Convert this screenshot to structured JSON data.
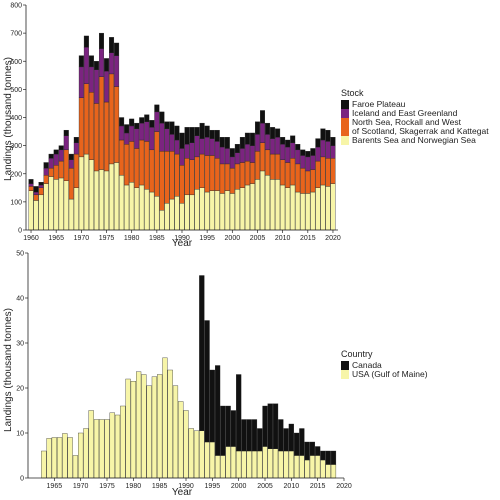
{
  "chart_data": [
    {
      "type": "bar",
      "stacked": true,
      "xlabel": "Year",
      "ylabel": "Landings (thousand tonnes)",
      "ylim": [
        0,
        800
      ],
      "yticks": [
        0,
        100,
        200,
        300,
        400,
        500,
        600,
        700,
        800
      ],
      "xlim": [
        1959,
        2021
      ],
      "xticks": [
        1960,
        1965,
        1970,
        1975,
        1980,
        1985,
        1990,
        1995,
        2000,
        2005,
        2010,
        2015,
        2020
      ],
      "legend_title": "Stock",
      "legend_position": "right",
      "legend_items": [
        "Faroe Plateau",
        "Iceland and East Greenland",
        "North Sea, Rockall and West of Scotland, Skagerrak and Kattegat",
        "Barents Sea and Norwegian Sea"
      ],
      "years": [
        1960,
        1961,
        1962,
        1963,
        1964,
        1965,
        1966,
        1967,
        1968,
        1969,
        1970,
        1971,
        1972,
        1973,
        1974,
        1975,
        1976,
        1977,
        1978,
        1979,
        1980,
        1981,
        1982,
        1983,
        1984,
        1985,
        1986,
        1987,
        1988,
        1989,
        1990,
        1991,
        1992,
        1993,
        1994,
        1995,
        1996,
        1997,
        1998,
        1999,
        2000,
        2001,
        2002,
        2003,
        2004,
        2005,
        2006,
        2007,
        2008,
        2009,
        2010,
        2011,
        2012,
        2013,
        2014,
        2015,
        2016,
        2017,
        2018,
        2019,
        2020
      ],
      "series": [
        {
          "name": "Barents Sea and Norwegian Sea",
          "color": "#f7f5a8",
          "values": [
            140,
            105,
            125,
            165,
            190,
            180,
            185,
            175,
            110,
            150,
            260,
            270,
            250,
            210,
            215,
            210,
            235,
            240,
            195,
            160,
            170,
            150,
            160,
            145,
            135,
            120,
            70,
            95,
            110,
            120,
            95,
            125,
            125,
            145,
            150,
            135,
            140,
            140,
            130,
            140,
            130,
            145,
            150,
            160,
            165,
            180,
            210,
            195,
            180,
            180,
            160,
            150,
            160,
            135,
            130,
            130,
            135,
            150,
            160,
            155,
            165
          ]
        },
        {
          "name": "North Sea, Rockall and West of Scotland, Skagerrak and Kattegat",
          "color": "#e8641c",
          "values": [
            15,
            20,
            25,
            30,
            30,
            50,
            60,
            110,
            110,
            120,
            210,
            250,
            240,
            240,
            330,
            245,
            320,
            270,
            125,
            145,
            145,
            140,
            160,
            170,
            150,
            230,
            210,
            185,
            170,
            150,
            135,
            130,
            125,
            115,
            120,
            130,
            125,
            115,
            105,
            95,
            90,
            90,
            90,
            85,
            75,
            100,
            100,
            90,
            90,
            90,
            90,
            90,
            95,
            100,
            90,
            80,
            80,
            95,
            100,
            100,
            90
          ]
        },
        {
          "name": "Iceland and East Greenland",
          "color": "#7b2480",
          "values": [
            10,
            10,
            10,
            25,
            35,
            40,
            40,
            50,
            30,
            40,
            110,
            130,
            90,
            120,
            100,
            110,
            75,
            110,
            50,
            40,
            55,
            70,
            60,
            70,
            80,
            70,
            100,
            80,
            60,
            50,
            60,
            50,
            60,
            75,
            55,
            65,
            60,
            60,
            60,
            55,
            40,
            40,
            50,
            60,
            60,
            60,
            70,
            55,
            55,
            60,
            55,
            55,
            55,
            50,
            45,
            50,
            50,
            50,
            60,
            60,
            45
          ]
        },
        {
          "name": "Faroe Plateau",
          "color": "#111111",
          "values": [
            15,
            20,
            10,
            20,
            15,
            15,
            15,
            20,
            20,
            20,
            40,
            40,
            40,
            30,
            55,
            45,
            55,
            45,
            30,
            30,
            25,
            20,
            20,
            25,
            25,
            25,
            40,
            25,
            45,
            50,
            55,
            60,
            55,
            30,
            55,
            40,
            30,
            40,
            35,
            40,
            30,
            30,
            40,
            40,
            45,
            45,
            45,
            40,
            40,
            30,
            25,
            25,
            25,
            20,
            20,
            20,
            25,
            30,
            40,
            40,
            30
          ]
        }
      ]
    },
    {
      "type": "bar",
      "stacked": true,
      "xlabel": "Year",
      "ylabel": "Landings (thousand tonnes)",
      "ylim": [
        0,
        50
      ],
      "yticks": [
        0,
        10,
        20,
        30,
        40,
        50
      ],
      "xlim": [
        1960,
        2020
      ],
      "xticks": [
        1965,
        1970,
        1975,
        1980,
        1985,
        1990,
        1995,
        2000,
        2005,
        2010,
        2015,
        2020
      ],
      "legend_title": "Country",
      "legend_position": "right",
      "legend_items": [
        "Canada",
        "USA (Gulf of Maine)"
      ],
      "years": [
        1963,
        1964,
        1965,
        1966,
        1967,
        1968,
        1969,
        1970,
        1971,
        1972,
        1973,
        1974,
        1975,
        1976,
        1977,
        1978,
        1979,
        1980,
        1981,
        1982,
        1983,
        1984,
        1985,
        1986,
        1987,
        1988,
        1989,
        1990,
        1991,
        1992,
        1993,
        1994,
        1995,
        1996,
        1997,
        1998,
        1999,
        2000,
        2001,
        2002,
        2003,
        2004,
        2005,
        2006,
        2007,
        2008,
        2009,
        2010,
        2011,
        2012,
        2013,
        2014,
        2015,
        2016,
        2017,
        2018
      ],
      "series": [
        {
          "name": "USA (Gulf of Maine)",
          "color": "#f7f5a8",
          "values": [
            6,
            8.8,
            9,
            9,
            9.9,
            9,
            5,
            10,
            11,
            15,
            13,
            13,
            13,
            14.5,
            14,
            16,
            22,
            21.5,
            23.6,
            23,
            20.5,
            22.5,
            23,
            26.7,
            24,
            20.5,
            17,
            15,
            11,
            10.5,
            10.5,
            8,
            8,
            5,
            5,
            7,
            7,
            6,
            6,
            6,
            6,
            6,
            7,
            6.5,
            6.5,
            6,
            6,
            6,
            5,
            5,
            4,
            5,
            5,
            4,
            3,
            3
          ]
        },
        {
          "name": "Canada",
          "color": "#111111",
          "values": [
            0,
            0,
            0,
            0,
            0,
            0,
            0,
            0,
            0,
            0,
            0,
            0,
            0,
            0,
            0,
            0,
            0,
            0,
            0,
            0,
            0,
            0,
            0,
            0,
            0,
            0,
            0,
            0,
            0,
            0,
            34.5,
            27,
            16,
            20,
            11,
            9,
            8,
            17,
            7,
            7,
            7,
            5,
            9,
            10,
            10,
            7,
            5,
            6,
            5,
            6,
            4,
            3,
            2,
            2,
            3,
            3
          ]
        }
      ]
    }
  ]
}
